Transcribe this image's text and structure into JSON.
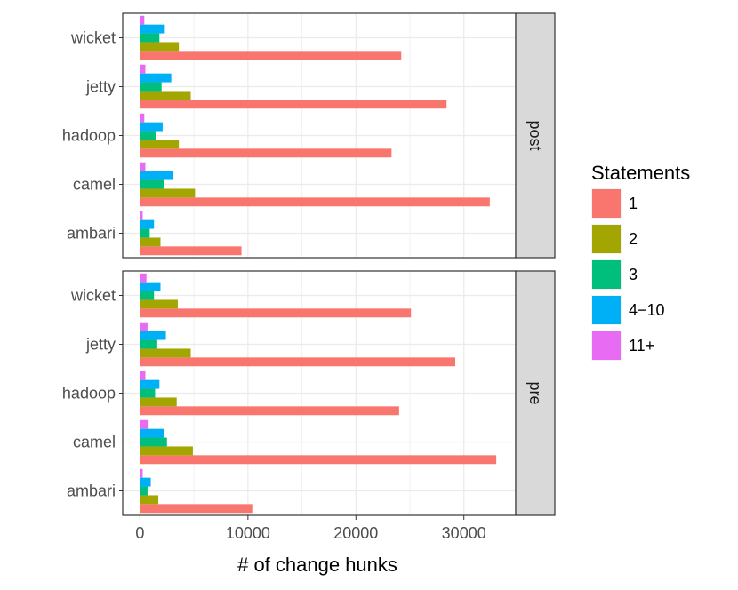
{
  "chart_data": {
    "type": "bar",
    "orientation": "horizontal",
    "xlabel": "# of change hunks",
    "ylabel": "",
    "xlim": [
      -1600,
      34800
    ],
    "x_ticks": [
      0,
      10000,
      20000,
      30000
    ],
    "x_tick_labels": [
      "0",
      "10000",
      "20000",
      "30000"
    ],
    "categories": [
      "wicket",
      "jetty",
      "hadoop",
      "camel",
      "ambari"
    ],
    "grid": true,
    "legend": {
      "title": "Statements",
      "position": "right",
      "entries": [
        {
          "label": "1",
          "color": "#F8766D"
        },
        {
          "label": "2",
          "color": "#A3A500"
        },
        {
          "label": "3",
          "color": "#00BF7D"
        },
        {
          "label": "4−10",
          "color": "#00B0F6"
        },
        {
          "label": "11+",
          "color": "#E76BF3"
        }
      ]
    },
    "facets": [
      {
        "strip_label": "post",
        "series": [
          {
            "name": "1",
            "values": [
              24200,
              28400,
              23300,
              32400,
              9400
            ]
          },
          {
            "name": "2",
            "values": [
              3600,
              4700,
              3600,
              5100,
              1900
            ]
          },
          {
            "name": "3",
            "values": [
              1800,
              2000,
              1500,
              2200,
              900
            ]
          },
          {
            "name": "4−10",
            "values": [
              2300,
              2900,
              2100,
              3100,
              1300
            ]
          },
          {
            "name": "11+",
            "values": [
              400,
              500,
              400,
              500,
              250
            ]
          }
        ]
      },
      {
        "strip_label": "pre",
        "series": [
          {
            "name": "1",
            "values": [
              25100,
              29200,
              24000,
              33000,
              10400
            ]
          },
          {
            "name": "2",
            "values": [
              3500,
              4700,
              3400,
              4900,
              1700
            ]
          },
          {
            "name": "3",
            "values": [
              1300,
              1600,
              1400,
              2500,
              700
            ]
          },
          {
            "name": "4−10",
            "values": [
              1900,
              2400,
              1800,
              2200,
              1000
            ]
          },
          {
            "name": "11+",
            "values": [
              600,
              700,
              500,
              800,
              250
            ]
          }
        ]
      }
    ]
  }
}
